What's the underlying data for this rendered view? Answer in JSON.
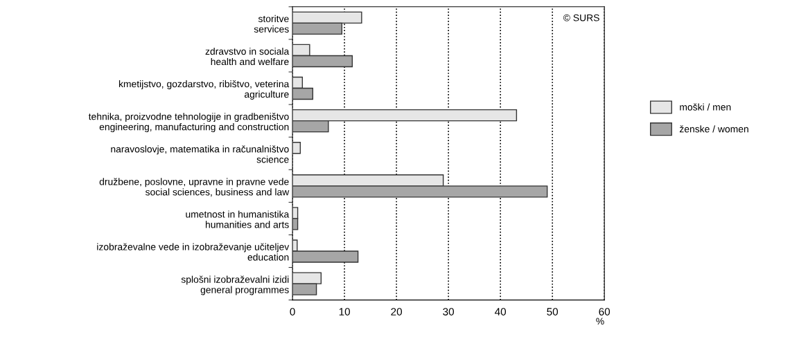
{
  "chart_data": {
    "type": "bar",
    "orientation": "horizontal",
    "categories": [
      "storitve\nservices",
      "zdravstvo in sociala\nhealth and welfare",
      "kmetijstvo, gozdarstvo, ribištvo, veterina\nagriculture",
      "tehnika, proizvodne tehnologije in gradbeništvo\nengineering, manufacturing and construction",
      "naravoslovje, matematika in računalništvo\nscience",
      "družbene, poslovne, upravne in pravne vede\nsocial sciences, business and law",
      "umetnost in humanistika\nhumanities and arts",
      "izobraževalne vede in izobraževanje učiteljev\neducation",
      "splošni izobraževalni izidi\ngeneral programmes"
    ],
    "series": [
      {
        "name": "moški / men",
        "color": "#e6e6e6",
        "values": [
          13.3,
          3.3,
          1.9,
          43.1,
          1.5,
          29.0,
          1.0,
          0.9,
          5.5
        ]
      },
      {
        "name": "ženske / women",
        "color": "#a6a6a6",
        "values": [
          9.5,
          11.5,
          3.9,
          6.9,
          null,
          49.0,
          1.0,
          12.6,
          4.6
        ]
      }
    ],
    "xlim": [
      0,
      60
    ],
    "xticks": [
      0,
      10,
      20,
      30,
      40,
      50,
      60
    ],
    "xlabel": "%",
    "grid": "x",
    "legend": "right",
    "annotations": [
      "© SURS"
    ]
  }
}
